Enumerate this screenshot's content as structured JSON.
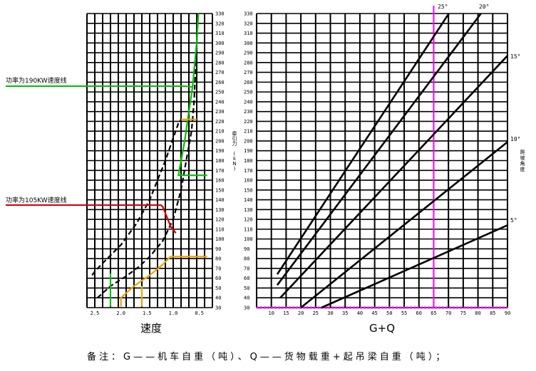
{
  "chart_data": [
    {
      "type": "line",
      "panel": "left",
      "xlabel": "速度",
      "ylabel": "牵引力 (kN)",
      "x_ticks": [
        "2.5",
        "2.0",
        "1.5",
        "1.0",
        "0.5"
      ],
      "y_ticks": [
        "30",
        "40",
        "50",
        "60",
        "70",
        "80",
        "90",
        "100",
        "110",
        "120",
        "130",
        "140",
        "150",
        "160",
        "170",
        "180",
        "190",
        "200",
        "210",
        "220",
        "230",
        "240",
        "250",
        "260",
        "270",
        "280",
        "290",
        "300",
        "310",
        "320",
        "330"
      ],
      "ylim": [
        30,
        330
      ],
      "annotations": [
        {
          "text": "功率为190KW速度线",
          "color": "#00c000"
        },
        {
          "text": "功率为105KW速度线",
          "color": "#d00000"
        }
      ],
      "series": [
        {
          "color": "#000000",
          "points": [
            [
              2.55,
              63
            ],
            [
              2.5,
              67
            ],
            [
              2.3,
              78
            ],
            [
              2.0,
              94
            ],
            [
              1.7,
              116
            ],
            [
              1.45,
              140
            ],
            [
              1.3,
              160
            ],
            [
              1.15,
              180
            ],
            [
              1.0,
              203
            ],
            [
              0.9,
              218
            ],
            [
              0.85,
              222
            ]
          ]
        },
        {
          "color": "#000000",
          "points": [
            [
              2.45,
              40
            ],
            [
              2.2,
              52
            ],
            [
              1.9,
              62
            ],
            [
              1.65,
              72
            ],
            [
              1.45,
              82
            ],
            [
              1.2,
              98
            ],
            [
              1.0,
              120
            ],
            [
              0.85,
              150
            ],
            [
              0.75,
              180
            ],
            [
              0.65,
              210
            ],
            [
              0.6,
              240
            ],
            [
              0.55,
              300
            ],
            [
              0.52,
              330
            ]
          ]
        },
        {
          "color": "#00c000",
          "points": [
            [
              0.52,
              330
            ],
            [
              0.55,
              300
            ],
            [
              0.63,
              255
            ],
            [
              0.7,
              230
            ],
            [
              0.78,
              200
            ],
            [
              0.9,
              165
            ],
            [
              0.35,
              165
            ]
          ]
        },
        {
          "color": "#f0a000",
          "points": [
            [
              0.85,
              222
            ],
            [
              0.55,
              222
            ]
          ]
        },
        {
          "color": "#00c000",
          "points": [
            [
              2.2,
              31
            ],
            [
              2.2,
              65
            ]
          ]
        },
        {
          "color": "#d00000",
          "points": [
            [
              1.25,
              135
            ],
            [
              1.2,
              133
            ],
            [
              1.05,
              113
            ],
            [
              0.95,
              106
            ]
          ]
        },
        {
          "color": "#f0a000",
          "points": [
            [
              2.0,
              31
            ],
            [
              2.0,
              40
            ],
            [
              1.75,
              52
            ],
            [
              1.45,
              63
            ],
            [
              1.2,
              74
            ],
            [
              1.05,
              82
            ],
            [
              0.35,
              82
            ]
          ]
        },
        {
          "color": "#f0a000",
          "points": [
            [
              1.6,
              31
            ],
            [
              1.6,
              52
            ]
          ]
        }
      ]
    },
    {
      "type": "line",
      "panel": "right",
      "xlabel": "G+Q",
      "ylabel": "爬坡角度",
      "x_ticks": [
        "10",
        "15",
        "20",
        "25",
        "30",
        "35",
        "40",
        "45",
        "50",
        "55",
        "60",
        "65",
        "70",
        "75",
        "80",
        "85",
        "90"
      ],
      "y_ticks": [
        "30",
        "40",
        "50",
        "60",
        "70",
        "80",
        "90",
        "100",
        "110",
        "120",
        "130",
        "140",
        "150",
        "160",
        "170",
        "180",
        "190",
        "200",
        "210",
        "220",
        "230",
        "240",
        "250",
        "260",
        "270",
        "280",
        "290",
        "300",
        "310",
        "320",
        "330"
      ],
      "xlim": [
        5,
        90
      ],
      "ylim": [
        30,
        330
      ],
      "series": [
        {
          "name": "5°",
          "points": [
            [
              27,
              30
            ],
            [
              90,
              114
            ]
          ]
        },
        {
          "name": "10°",
          "points": [
            [
              20,
              30
            ],
            [
              90,
              199
            ]
          ]
        },
        {
          "name": "15°",
          "points": [
            [
              13,
              40
            ],
            [
              90,
              287
            ]
          ]
        },
        {
          "name": "20°",
          "points": [
            [
              12,
              53
            ],
            [
              82,
              334
            ]
          ]
        },
        {
          "name": "25°",
          "points": [
            [
              12,
              64
            ],
            [
              71,
              334
            ]
          ]
        }
      ],
      "reference_line_x": 65
    }
  ],
  "footnote": "备注：G——机车自重（吨）、Q——货物载重+起吊梁自重（吨）；"
}
